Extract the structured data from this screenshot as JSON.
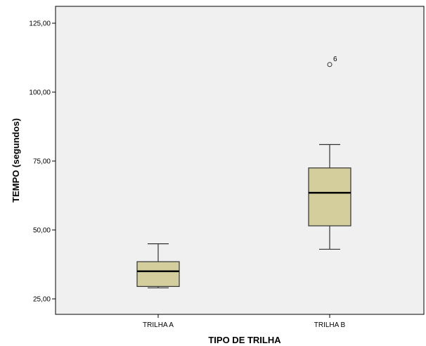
{
  "chart_data": {
    "type": "boxplot",
    "title": "",
    "xlabel": "TIPO DE TRILHA",
    "ylabel": "TEMPO (segundos)",
    "ylim": [
      20,
      130
    ],
    "yticks": [
      25,
      50,
      75,
      100,
      125
    ],
    "ytick_labels": [
      "25,00",
      "50,00",
      "75,00",
      "100,00",
      "125,00"
    ],
    "grid": false,
    "categories": [
      "TRILHA A",
      "TRILHA B"
    ],
    "boxes": [
      {
        "category": "TRILHA A",
        "whisker_low": 29,
        "q1": 29.5,
        "median": 35,
        "q3": 38.5,
        "whisker_high": 45,
        "outliers": []
      },
      {
        "category": "TRILHA B",
        "whisker_low": 43,
        "q1": 51.5,
        "median": 63.5,
        "q3": 72.5,
        "whisker_high": 81,
        "outliers": [
          {
            "value": 110,
            "label": "6"
          }
        ]
      }
    ],
    "colors": {
      "plot_background": "#f0f0f0",
      "box_fill": "#d3ce9b",
      "box_stroke": "#333333"
    }
  }
}
